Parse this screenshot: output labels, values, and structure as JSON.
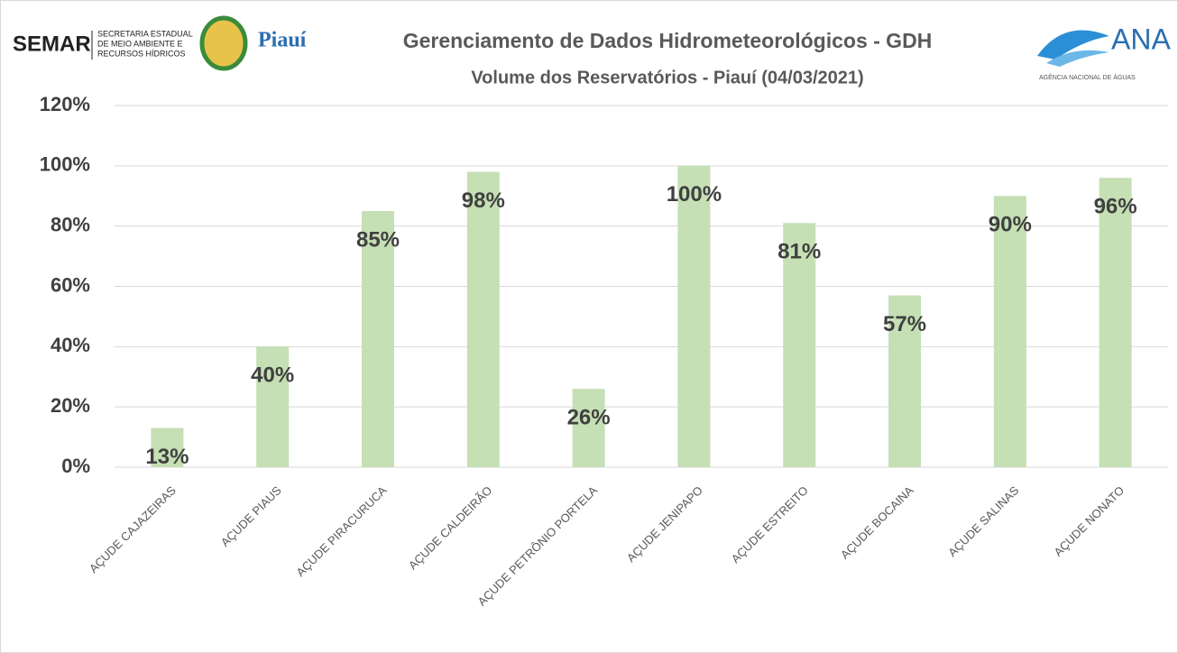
{
  "logos": {
    "semar": "SEMAR",
    "semar_text": [
      "SECRETARIA ESTADUAL",
      "DE MEIO AMBIENTE E",
      "RECURSOS HÍDRICOS"
    ],
    "piaui": "Piauí",
    "ana": "ANA",
    "ana_text": "AGÊNCIA NACIONAL DE ÁGUAS"
  },
  "chart_data": {
    "type": "bar",
    "title": "Gerenciamento de Dados Hidrometeorológicos - GDH",
    "subtitle": "Volume dos Reservatórios - Piauí (04/03/2021)",
    "categories": [
      "AÇUDE CAJAZEIRAS",
      "AÇUDE PIAUS",
      "AÇUDE PIRACURUCA",
      "AÇUDE CALDEIRÃO",
      "AÇUDE PETRÔNIO PORTELA",
      "AÇUDE JENIPAPO",
      "AÇUDE ESTREITO",
      "AÇUDE BOCAINA",
      "AÇUDE SALINAS",
      "AÇUDE NONATO"
    ],
    "values": [
      13,
      40,
      85,
      98,
      26,
      100,
      81,
      57,
      90,
      96
    ],
    "value_labels": [
      "13%",
      "40%",
      "85%",
      "98%",
      "26%",
      "100%",
      "81%",
      "57%",
      "90%",
      "96%"
    ],
    "color": "#c5e0b4",
    "ylim": [
      0,
      120
    ],
    "yticks": [
      {
        "value": 0,
        "label": "0%"
      },
      {
        "value": 20,
        "label": "20%"
      },
      {
        "value": 40,
        "label": "40%"
      },
      {
        "value": 60,
        "label": "60%"
      },
      {
        "value": 80,
        "label": "80%"
      },
      {
        "value": 100,
        "label": "100%"
      },
      {
        "value": 120,
        "label": "120%"
      }
    ],
    "grid": true
  }
}
